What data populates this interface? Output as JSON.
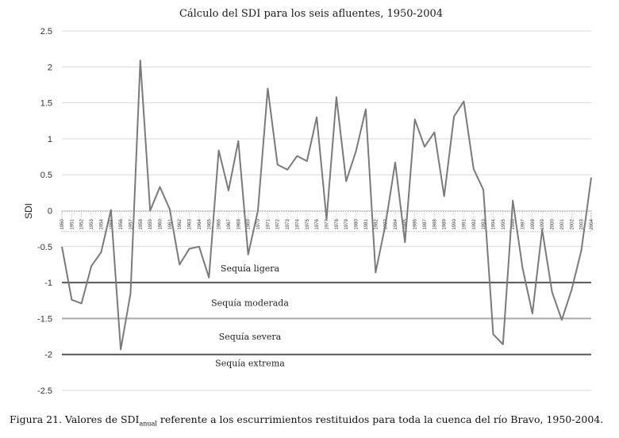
{
  "chart_data": {
    "type": "line",
    "title": "Cálculo del SDI para los seis afluentes, 1950-2004",
    "ylabel": "SDI",
    "xlabel": "",
    "ylim": [
      -2.5,
      2.5
    ],
    "yticks": [
      2.5,
      2,
      1.5,
      1,
      0.5,
      0,
      -0.5,
      -1,
      -1.5,
      -2,
      -2.5
    ],
    "ytick_labels": [
      "2.5",
      "2",
      "1.5",
      "1",
      "0.5",
      "0",
      "-0.5",
      "-1",
      "-1.5",
      "-2",
      "-2.5"
    ],
    "grid": true,
    "x": [
      1950,
      1951,
      1952,
      1953,
      1954,
      1955,
      1956,
      1957,
      1958,
      1959,
      1960,
      1961,
      1962,
      1963,
      1964,
      1965,
      1966,
      1967,
      1968,
      1969,
      1970,
      1971,
      1972,
      1973,
      1974,
      1975,
      1976,
      1977,
      1978,
      1979,
      1980,
      1981,
      1982,
      1983,
      1984,
      1985,
      1986,
      1987,
      1988,
      1989,
      1990,
      1991,
      1992,
      1993,
      1994,
      1995,
      1996,
      1997,
      1998,
      1999,
      2000,
      2001,
      2002,
      2003,
      2004
    ],
    "series": [
      {
        "color": "#7a7a7a",
        "values": [
          -0.5,
          -1.24,
          -1.29,
          -0.77,
          -0.58,
          0.01,
          -1.93,
          -1.15,
          2.09,
          0.0,
          0.33,
          0.02,
          -0.75,
          -0.53,
          -0.5,
          -0.93,
          0.84,
          0.28,
          0.97,
          -0.61,
          0.0,
          1.7,
          0.64,
          0.57,
          0.76,
          0.69,
          1.3,
          -0.12,
          1.58,
          0.41,
          0.83,
          1.41,
          -0.86,
          -0.2,
          0.67,
          -0.44,
          1.27,
          0.89,
          1.09,
          0.2,
          1.31,
          1.52,
          0.58,
          0.29,
          -1.72,
          -1.86,
          0.14,
          -0.8,
          -1.43,
          -0.26,
          -1.13,
          -1.52,
          -1.1,
          -0.55,
          0.46
        ]
      }
    ],
    "thresholds": [
      {
        "value": -1.0,
        "color": "#555555"
      },
      {
        "value": -1.5,
        "color": "#aaaaaa"
      },
      {
        "value": -2.0,
        "color": "#555555"
      }
    ],
    "zone_labels": [
      {
        "text": "Sequía ligera",
        "y": -0.8
      },
      {
        "text": "Sequía moderada",
        "y": -1.28
      },
      {
        "text": "Sequía severa",
        "y": -1.75
      },
      {
        "text": "Sequía extrema",
        "y": -2.12
      }
    ]
  },
  "caption": {
    "prefix": "Figura 21. Valores de SDI",
    "subscript": "anual",
    "suffix": " referente a los escurrimientos restituidos para toda la cuenca del río Bravo, 1950-2004."
  }
}
